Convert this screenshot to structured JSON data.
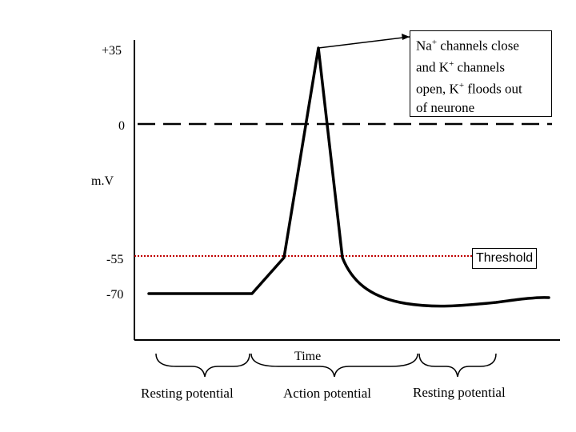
{
  "y_axis": {
    "label": "m.V",
    "ticks": [
      "+35",
      "0",
      "-55",
      "-70"
    ]
  },
  "x_axis": {
    "label": "Time"
  },
  "callout": {
    "line1_a": "Na",
    "line1_sup": "+",
    "line1_b": " channels close",
    "line2_a": "and K",
    "line2_sup": "+",
    "line2_b": " channels",
    "line3_a": "open, K",
    "line3_sup": "+",
    "line3_b": " floods out",
    "line4": "of neurone"
  },
  "threshold_label": "Threshold",
  "phases": [
    "Resting potential",
    "Action potential",
    "Resting potential"
  ],
  "colors": {
    "trace": "#000000",
    "threshold_line": "#c00000",
    "zero_line": "#000000"
  },
  "chart_data": {
    "type": "line",
    "ylabel": "m.V",
    "xlabel": "Time",
    "y_ticks": [
      35,
      0,
      -55,
      -70
    ],
    "series": [
      {
        "values": [
          -70,
          -70,
          -55,
          35,
          -55,
          -75,
          -80,
          -78,
          -77
        ]
      }
    ],
    "reference_lines": [
      {
        "value": 0,
        "style": "dashed"
      },
      {
        "value": -55,
        "style": "dotted",
        "label": "Threshold"
      }
    ]
  }
}
